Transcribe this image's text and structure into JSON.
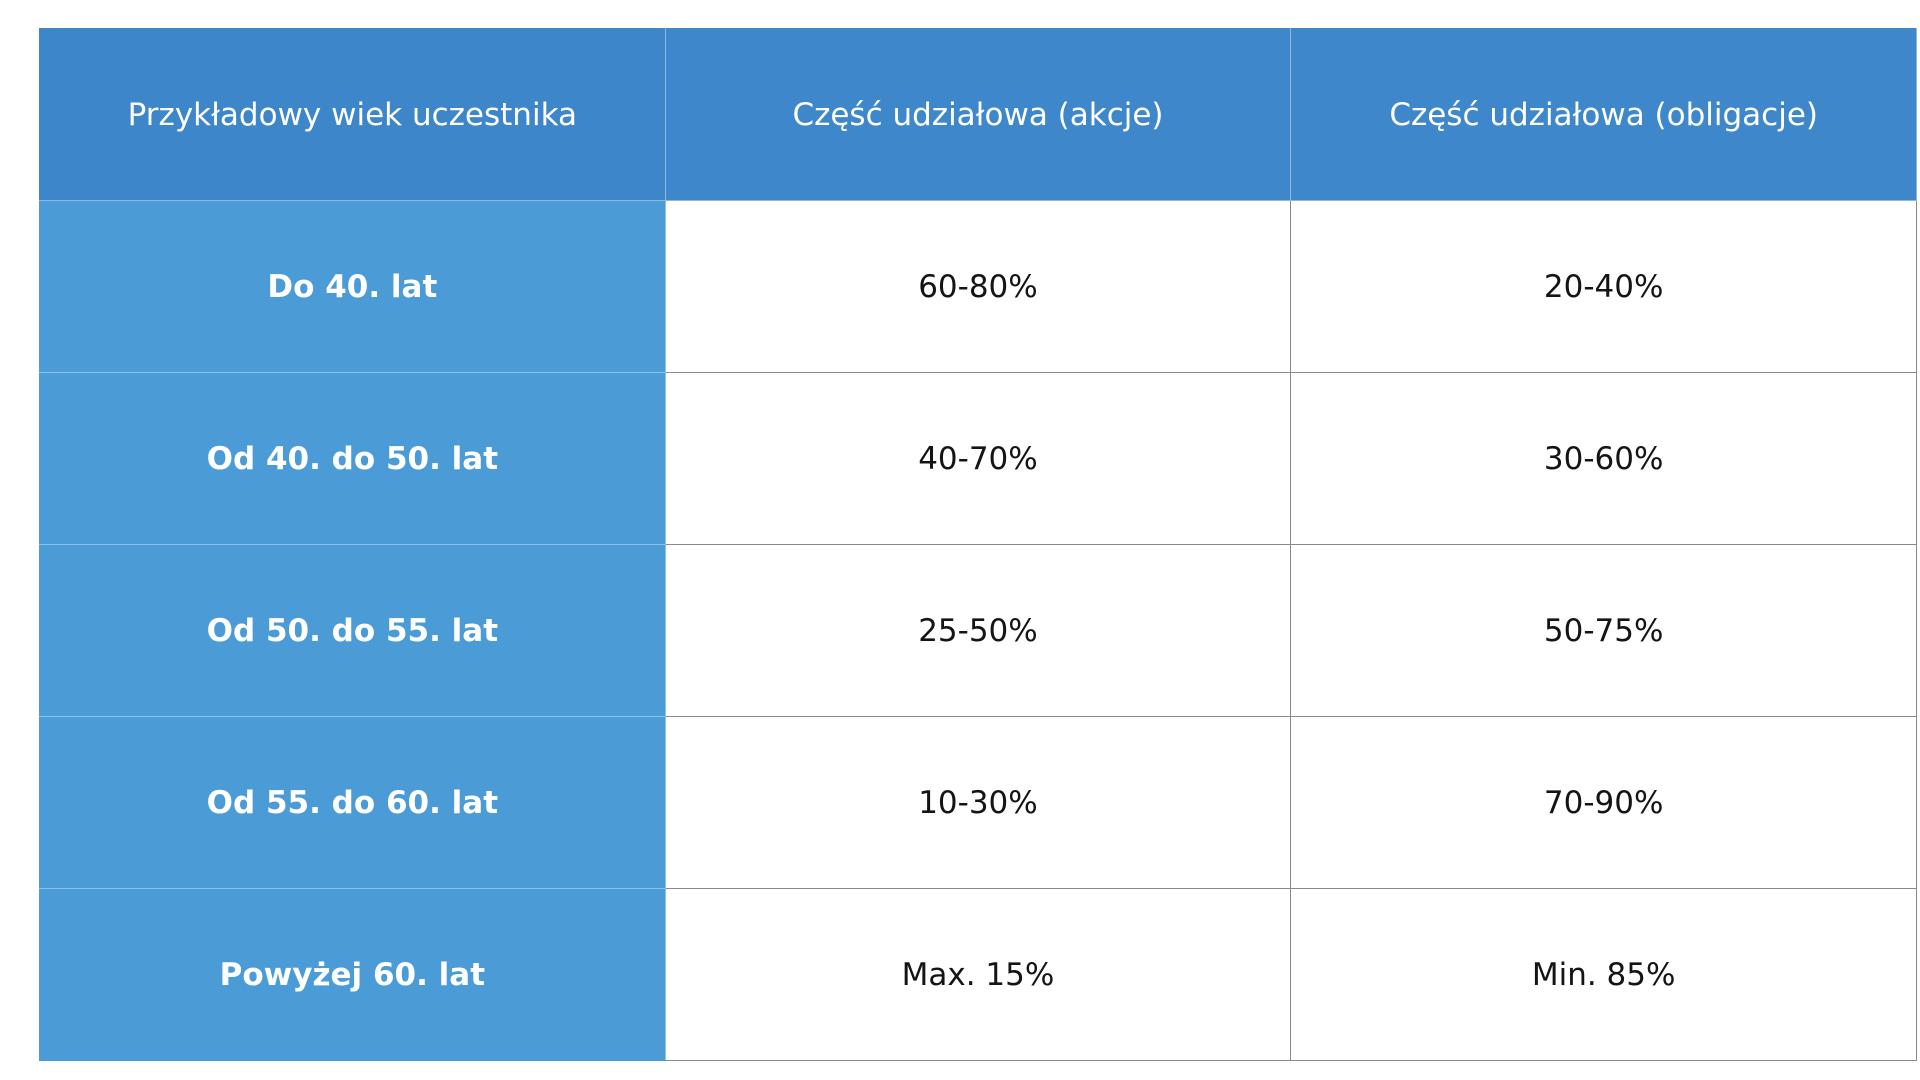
{
  "table": {
    "headers": [
      "Przykładowy wiek uczestnika",
      "Część udziałowa (akcje)",
      "Część udziałowa (obligacje)"
    ],
    "rows": [
      {
        "age": "Do 40. lat",
        "shares": "60-80%",
        "bonds": "20-40%"
      },
      {
        "age": "Od 40. do 50. lat",
        "shares": "40-70%",
        "bonds": "30-60%"
      },
      {
        "age": "Od 50. do 55. lat",
        "shares": "25-50%",
        "bonds": "50-75%"
      },
      {
        "age": "Od 55. do 60. lat",
        "shares": "10-30%",
        "bonds": "70-90%"
      },
      {
        "age": "Powyżej 60. lat",
        "shares": "Max. 15%",
        "bonds": "Min. 85%"
      }
    ]
  },
  "colors": {
    "header_bg": "#3e87cb",
    "age_column_bg": "#4b9bd6",
    "cell_bg": "#ffffff",
    "grid_line": "#8a8a8a"
  }
}
